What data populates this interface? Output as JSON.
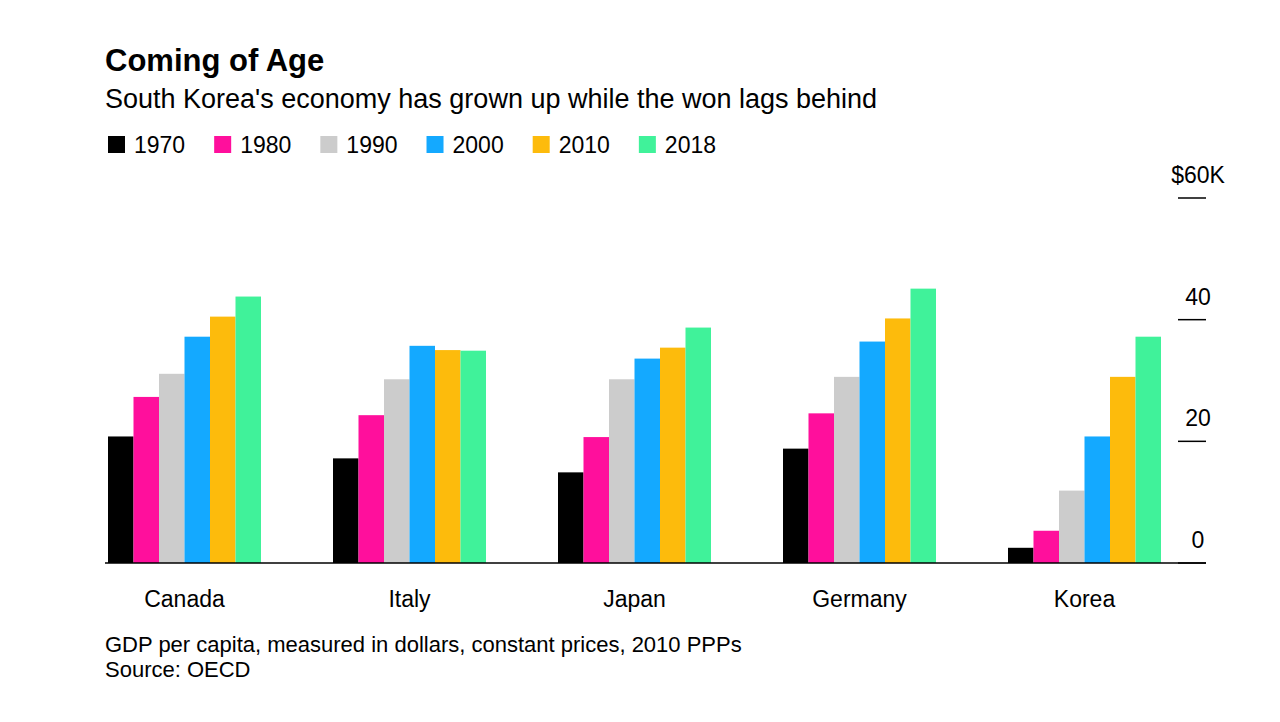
{
  "chart_data": {
    "type": "bar",
    "title": "Coming of Age",
    "subtitle": "South Korea's economy has grown up while the won lags behind",
    "note": "GDP per capita, measured in dollars, constant prices, 2010 PPPs",
    "source": "Source: OECD",
    "categories": [
      "Canada",
      "Italy",
      "Japan",
      "Germany",
      "Korea"
    ],
    "series": [
      {
        "name": "1970",
        "color": "#000000",
        "values": [
          20.8,
          17.2,
          14.9,
          18.8,
          2.5
        ]
      },
      {
        "name": "1980",
        "color": "#ff0f9c",
        "values": [
          27.3,
          24.3,
          20.7,
          24.6,
          5.3
        ]
      },
      {
        "name": "1990",
        "color": "#cccccc",
        "values": [
          31.1,
          30.2,
          30.2,
          30.6,
          11.9
        ]
      },
      {
        "name": "2000",
        "color": "#14a9ff",
        "values": [
          37.2,
          35.7,
          33.6,
          36.4,
          20.8
        ]
      },
      {
        "name": "2010",
        "color": "#fdbb0c",
        "values": [
          40.5,
          35.0,
          35.4,
          40.2,
          30.6
        ]
      },
      {
        "name": "2018",
        "color": "#40f29a",
        "values": [
          43.8,
          34.9,
          38.7,
          45.1,
          37.2
        ]
      }
    ],
    "ylim": [
      0,
      60
    ],
    "yticks": [
      0,
      20,
      40,
      {
        "value": 60,
        "label": "$60K"
      }
    ],
    "grid": false,
    "legend": "top-left"
  }
}
